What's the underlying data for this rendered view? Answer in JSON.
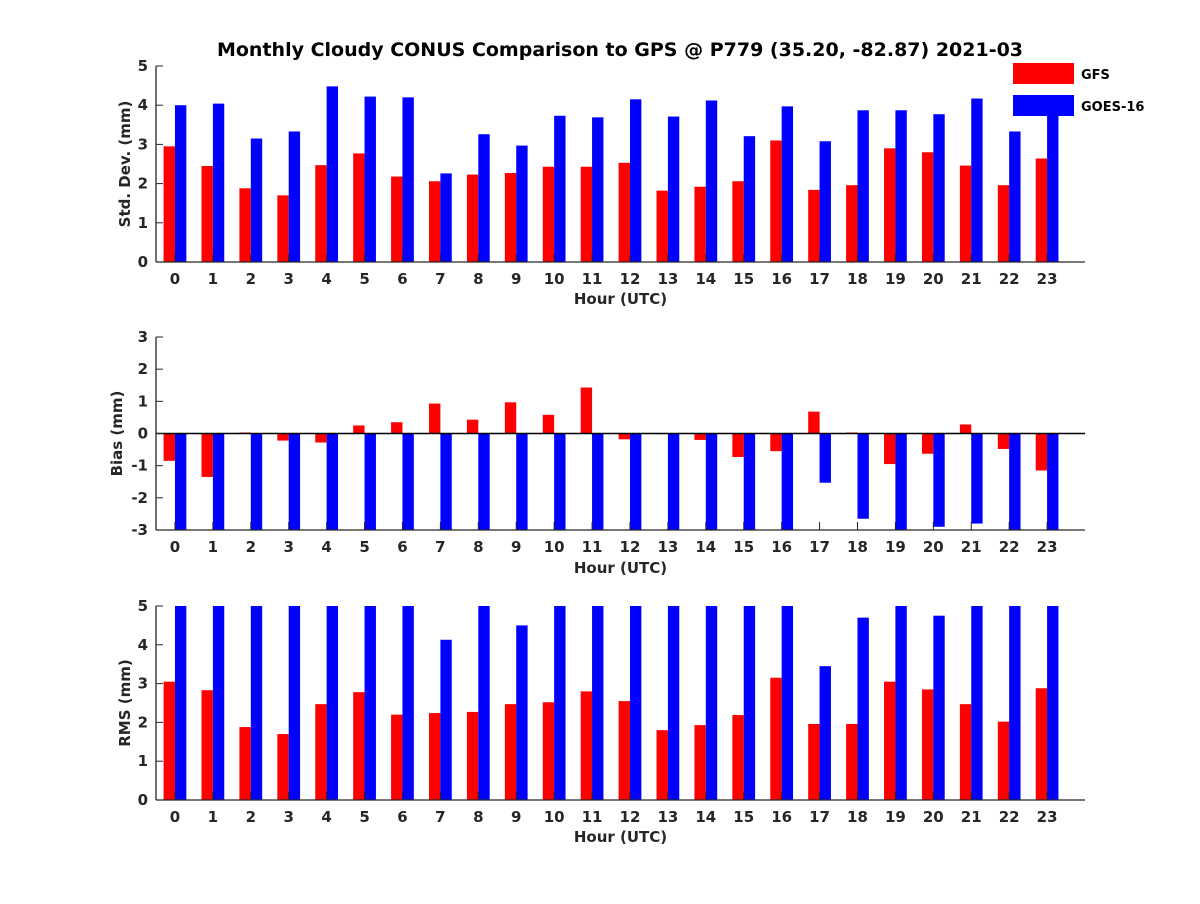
{
  "figure": {
    "title": "Monthly Cloudy CONUS Comparison to GPS @ P779 (35.20, -82.87) 2021-03"
  },
  "legend": {
    "placement": "top-right",
    "items": [
      {
        "label": "GFS",
        "color": "#ff0000"
      },
      {
        "label": "GOES-16",
        "color": "#0000ff"
      }
    ]
  },
  "chart_data": [
    {
      "type": "bar",
      "xlabel": "Hour (UTC)",
      "ylabel": "Std. Dev. (mm)",
      "ylim": [
        0,
        5
      ],
      "yticks": [
        0,
        1,
        2,
        3,
        4,
        5
      ],
      "categories": [
        "0",
        "1",
        "2",
        "3",
        "4",
        "5",
        "6",
        "7",
        "8",
        "9",
        "10",
        "11",
        "12",
        "13",
        "14",
        "15",
        "16",
        "17",
        "18",
        "19",
        "20",
        "21",
        "22",
        "23"
      ],
      "series": [
        {
          "name": "GFS",
          "color": "#ff0000",
          "values": [
            2.95,
            2.45,
            1.88,
            1.7,
            2.47,
            2.77,
            2.18,
            2.06,
            2.23,
            2.27,
            2.43,
            2.43,
            2.53,
            1.82,
            1.92,
            2.06,
            3.1,
            1.84,
            1.96,
            2.9,
            2.8,
            2.46,
            1.96,
            2.64
          ]
        },
        {
          "name": "GOES-16",
          "color": "#0000ff",
          "values": [
            4.0,
            4.04,
            3.15,
            3.33,
            4.48,
            4.22,
            4.2,
            2.26,
            3.26,
            2.97,
            3.73,
            3.69,
            4.15,
            3.71,
            4.12,
            3.21,
            3.97,
            3.08,
            3.87,
            3.87,
            3.77,
            4.17,
            3.33,
            3.84
          ]
        }
      ],
      "grid": false
    },
    {
      "type": "bar",
      "xlabel": "Hour (UTC)",
      "ylabel": "Bias (mm)",
      "ylim": [
        -3,
        3
      ],
      "yticks": [
        -3,
        -2,
        -1,
        0,
        1,
        2,
        3
      ],
      "categories": [
        "0",
        "1",
        "2",
        "3",
        "4",
        "5",
        "6",
        "7",
        "8",
        "9",
        "10",
        "11",
        "12",
        "13",
        "14",
        "15",
        "16",
        "17",
        "18",
        "19",
        "20",
        "21",
        "22",
        "23"
      ],
      "series": [
        {
          "name": "GFS",
          "color": "#ff0000",
          "values": [
            -0.85,
            -1.35,
            0.03,
            -0.22,
            -0.28,
            0.25,
            0.35,
            0.93,
            0.43,
            0.97,
            0.58,
            1.43,
            -0.18,
            0.0,
            -0.2,
            -0.73,
            -0.55,
            0.68,
            0.03,
            -0.95,
            -0.63,
            0.28,
            -0.48,
            -1.15
          ]
        },
        {
          "name": "GOES-16",
          "color": "#0000ff",
          "values": [
            -3.2,
            -3.2,
            -3.2,
            -3.2,
            -3.2,
            -3.2,
            -3.2,
            -3.2,
            -3.2,
            -3.2,
            -3.2,
            -3.2,
            -3.2,
            -3.2,
            -3.2,
            -3.2,
            -3.2,
            -1.53,
            -2.65,
            -3.2,
            -2.9,
            -2.8,
            -3.2,
            -3.2
          ]
        }
      ],
      "grid": false
    },
    {
      "type": "bar",
      "xlabel": "Hour (UTC)",
      "ylabel": "RMS (mm)",
      "ylim": [
        0,
        5
      ],
      "yticks": [
        0,
        1,
        2,
        3,
        4,
        5
      ],
      "categories": [
        "0",
        "1",
        "2",
        "3",
        "4",
        "5",
        "6",
        "7",
        "8",
        "9",
        "10",
        "11",
        "12",
        "13",
        "14",
        "15",
        "16",
        "17",
        "18",
        "19",
        "20",
        "21",
        "22",
        "23"
      ],
      "series": [
        {
          "name": "GFS",
          "color": "#ff0000",
          "values": [
            3.05,
            2.83,
            1.88,
            1.7,
            2.47,
            2.78,
            2.2,
            2.24,
            2.27,
            2.47,
            2.52,
            2.8,
            2.55,
            1.8,
            1.93,
            2.19,
            3.15,
            1.96,
            1.96,
            3.05,
            2.85,
            2.47,
            2.02,
            2.88
          ]
        },
        {
          "name": "GOES-16",
          "color": "#0000ff",
          "values": [
            5.0,
            5.0,
            5.0,
            5.0,
            5.0,
            5.0,
            5.0,
            4.13,
            5.0,
            4.5,
            5.0,
            5.0,
            5.0,
            5.0,
            5.0,
            5.0,
            5.0,
            3.45,
            4.7,
            5.0,
            4.75,
            5.0,
            5.0,
            5.0
          ]
        }
      ],
      "grid": false
    }
  ]
}
